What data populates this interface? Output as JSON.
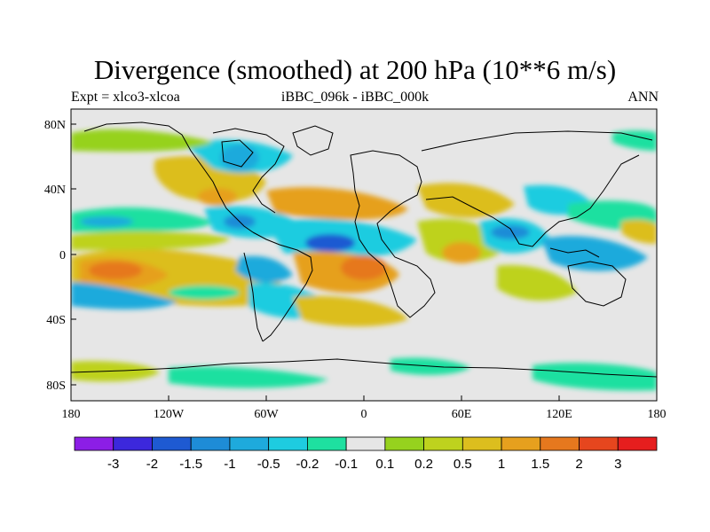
{
  "title": "Divergence (smoothed) at 200 hPa (10**6 m/s)",
  "subtitle_left": "Expt = xlco3-xlcoa",
  "subtitle_center": "iBBC_096k - iBBC_000k",
  "subtitle_right": "ANN",
  "lat_ticks": [
    "80N",
    "40N",
    "0",
    "40S",
    "80S"
  ],
  "lon_ticks": [
    "180",
    "120W",
    "60W",
    "0",
    "60E",
    "120E",
    "180"
  ],
  "colorbar": {
    "colors": [
      "#8c1ee6",
      "#3c28dc",
      "#1e5ad2",
      "#1e8cd7",
      "#1eaadc",
      "#1ecce0",
      "#1ee0a0",
      "#e6e6e6",
      "#96d21e",
      "#bed21e",
      "#dcbe1e",
      "#e6a01e",
      "#e6781e",
      "#e6461e",
      "#e61e1e"
    ],
    "labels": [
      "-3",
      "-2",
      "-1.5",
      "-1",
      "-0.5",
      "-0.2",
      "-0.1",
      "0.1",
      "0.2",
      "0.5",
      "1",
      "1.5",
      "2",
      "3"
    ]
  }
}
